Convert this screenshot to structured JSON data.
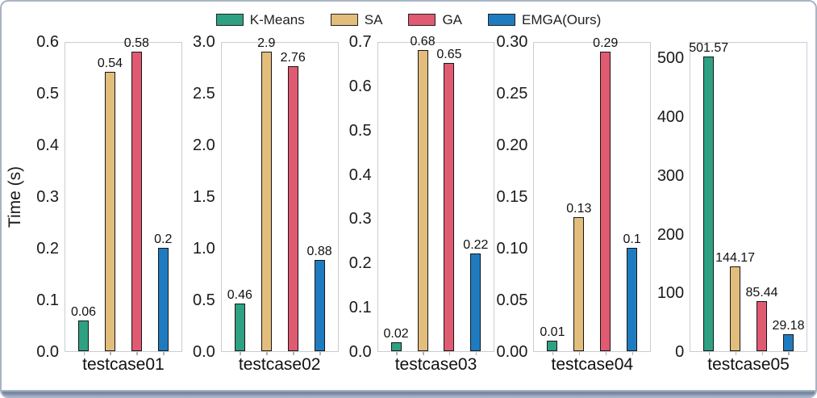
{
  "ylabel": "Time (s)",
  "legend": {
    "items": [
      {
        "label": "K-Means",
        "color": "#2ea183"
      },
      {
        "label": "SA",
        "color": "#e3bd7b"
      },
      {
        "label": "GA",
        "color": "#e05a72"
      },
      {
        "label": "EMGA(Ours)",
        "color": "#1f7bc0"
      }
    ]
  },
  "chart_data": [
    {
      "type": "bar",
      "title": "",
      "xlabel": "testcase01",
      "ylabel": "Time (s)",
      "categories": [
        "K-Means",
        "SA",
        "GA",
        "EMGA(Ours)"
      ],
      "values": [
        0.06,
        0.54,
        0.58,
        0.2
      ],
      "value_labels": [
        "0.06",
        "0.54",
        "0.58",
        "0.2"
      ],
      "ytick_labels": [
        "0.0",
        "0.1",
        "0.2",
        "0.3",
        "0.4",
        "0.5",
        "0.6"
      ],
      "ytick_values": [
        0,
        0.1,
        0.2,
        0.3,
        0.4,
        0.5,
        0.6
      ],
      "ylim": [
        0,
        0.6
      ],
      "grid": false,
      "legend_position": "top-center-shared"
    },
    {
      "type": "bar",
      "title": "",
      "xlabel": "testcase02",
      "ylabel": "Time (s)",
      "categories": [
        "K-Means",
        "SA",
        "GA",
        "EMGA(Ours)"
      ],
      "values": [
        0.46,
        2.9,
        2.76,
        0.88
      ],
      "value_labels": [
        "0.46",
        "2.9",
        "2.76",
        "0.88"
      ],
      "ytick_labels": [
        "0.0",
        "0.5",
        "1.0",
        "1.5",
        "2.0",
        "2.5",
        "3.0"
      ],
      "ytick_values": [
        0,
        0.5,
        1.0,
        1.5,
        2.0,
        2.5,
        3.0
      ],
      "ylim": [
        0,
        3.0
      ],
      "grid": false,
      "legend_position": "top-center-shared"
    },
    {
      "type": "bar",
      "title": "",
      "xlabel": "testcase03",
      "ylabel": "Time (s)",
      "categories": [
        "K-Means",
        "SA",
        "GA",
        "EMGA(Ours)"
      ],
      "values": [
        0.02,
        0.68,
        0.65,
        0.22
      ],
      "value_labels": [
        "0.02",
        "0.68",
        "0.65",
        "0.22"
      ],
      "ytick_labels": [
        "0.0",
        "0.1",
        "0.2",
        "0.3",
        "0.4",
        "0.5",
        "0.6",
        "0.7"
      ],
      "ytick_values": [
        0,
        0.1,
        0.2,
        0.3,
        0.4,
        0.5,
        0.6,
        0.7
      ],
      "ylim": [
        0,
        0.7
      ],
      "grid": false,
      "legend_position": "top-center-shared"
    },
    {
      "type": "bar",
      "title": "",
      "xlabel": "testcase04",
      "ylabel": "Time (s)",
      "categories": [
        "K-Means",
        "SA",
        "GA",
        "EMGA(Ours)"
      ],
      "values": [
        0.01,
        0.13,
        0.29,
        0.1
      ],
      "value_labels": [
        "0.01",
        "0.13",
        "0.29",
        "0.1"
      ],
      "ytick_labels": [
        "0.00",
        "0.05",
        "0.10",
        "0.15",
        "0.20",
        "0.25",
        "0.30"
      ],
      "ytick_values": [
        0,
        0.05,
        0.1,
        0.15,
        0.2,
        0.25,
        0.3
      ],
      "ylim": [
        0,
        0.3
      ],
      "grid": false,
      "legend_position": "top-center-shared"
    },
    {
      "type": "bar",
      "title": "",
      "xlabel": "testcase05",
      "ylabel": "Time (s)",
      "categories": [
        "K-Means",
        "SA",
        "GA",
        "EMGA(Ours)"
      ],
      "values": [
        501.57,
        144.17,
        85.44,
        29.18
      ],
      "value_labels": [
        "501.57",
        "144.17",
        "85.44",
        "29.18"
      ],
      "ytick_labels": [
        "0",
        "100",
        "200",
        "300",
        "400",
        "500"
      ],
      "ytick_values": [
        0,
        100,
        200,
        300,
        400,
        500
      ],
      "ylim": [
        0,
        528
      ],
      "grid": false,
      "legend_position": "top-center-shared"
    }
  ]
}
